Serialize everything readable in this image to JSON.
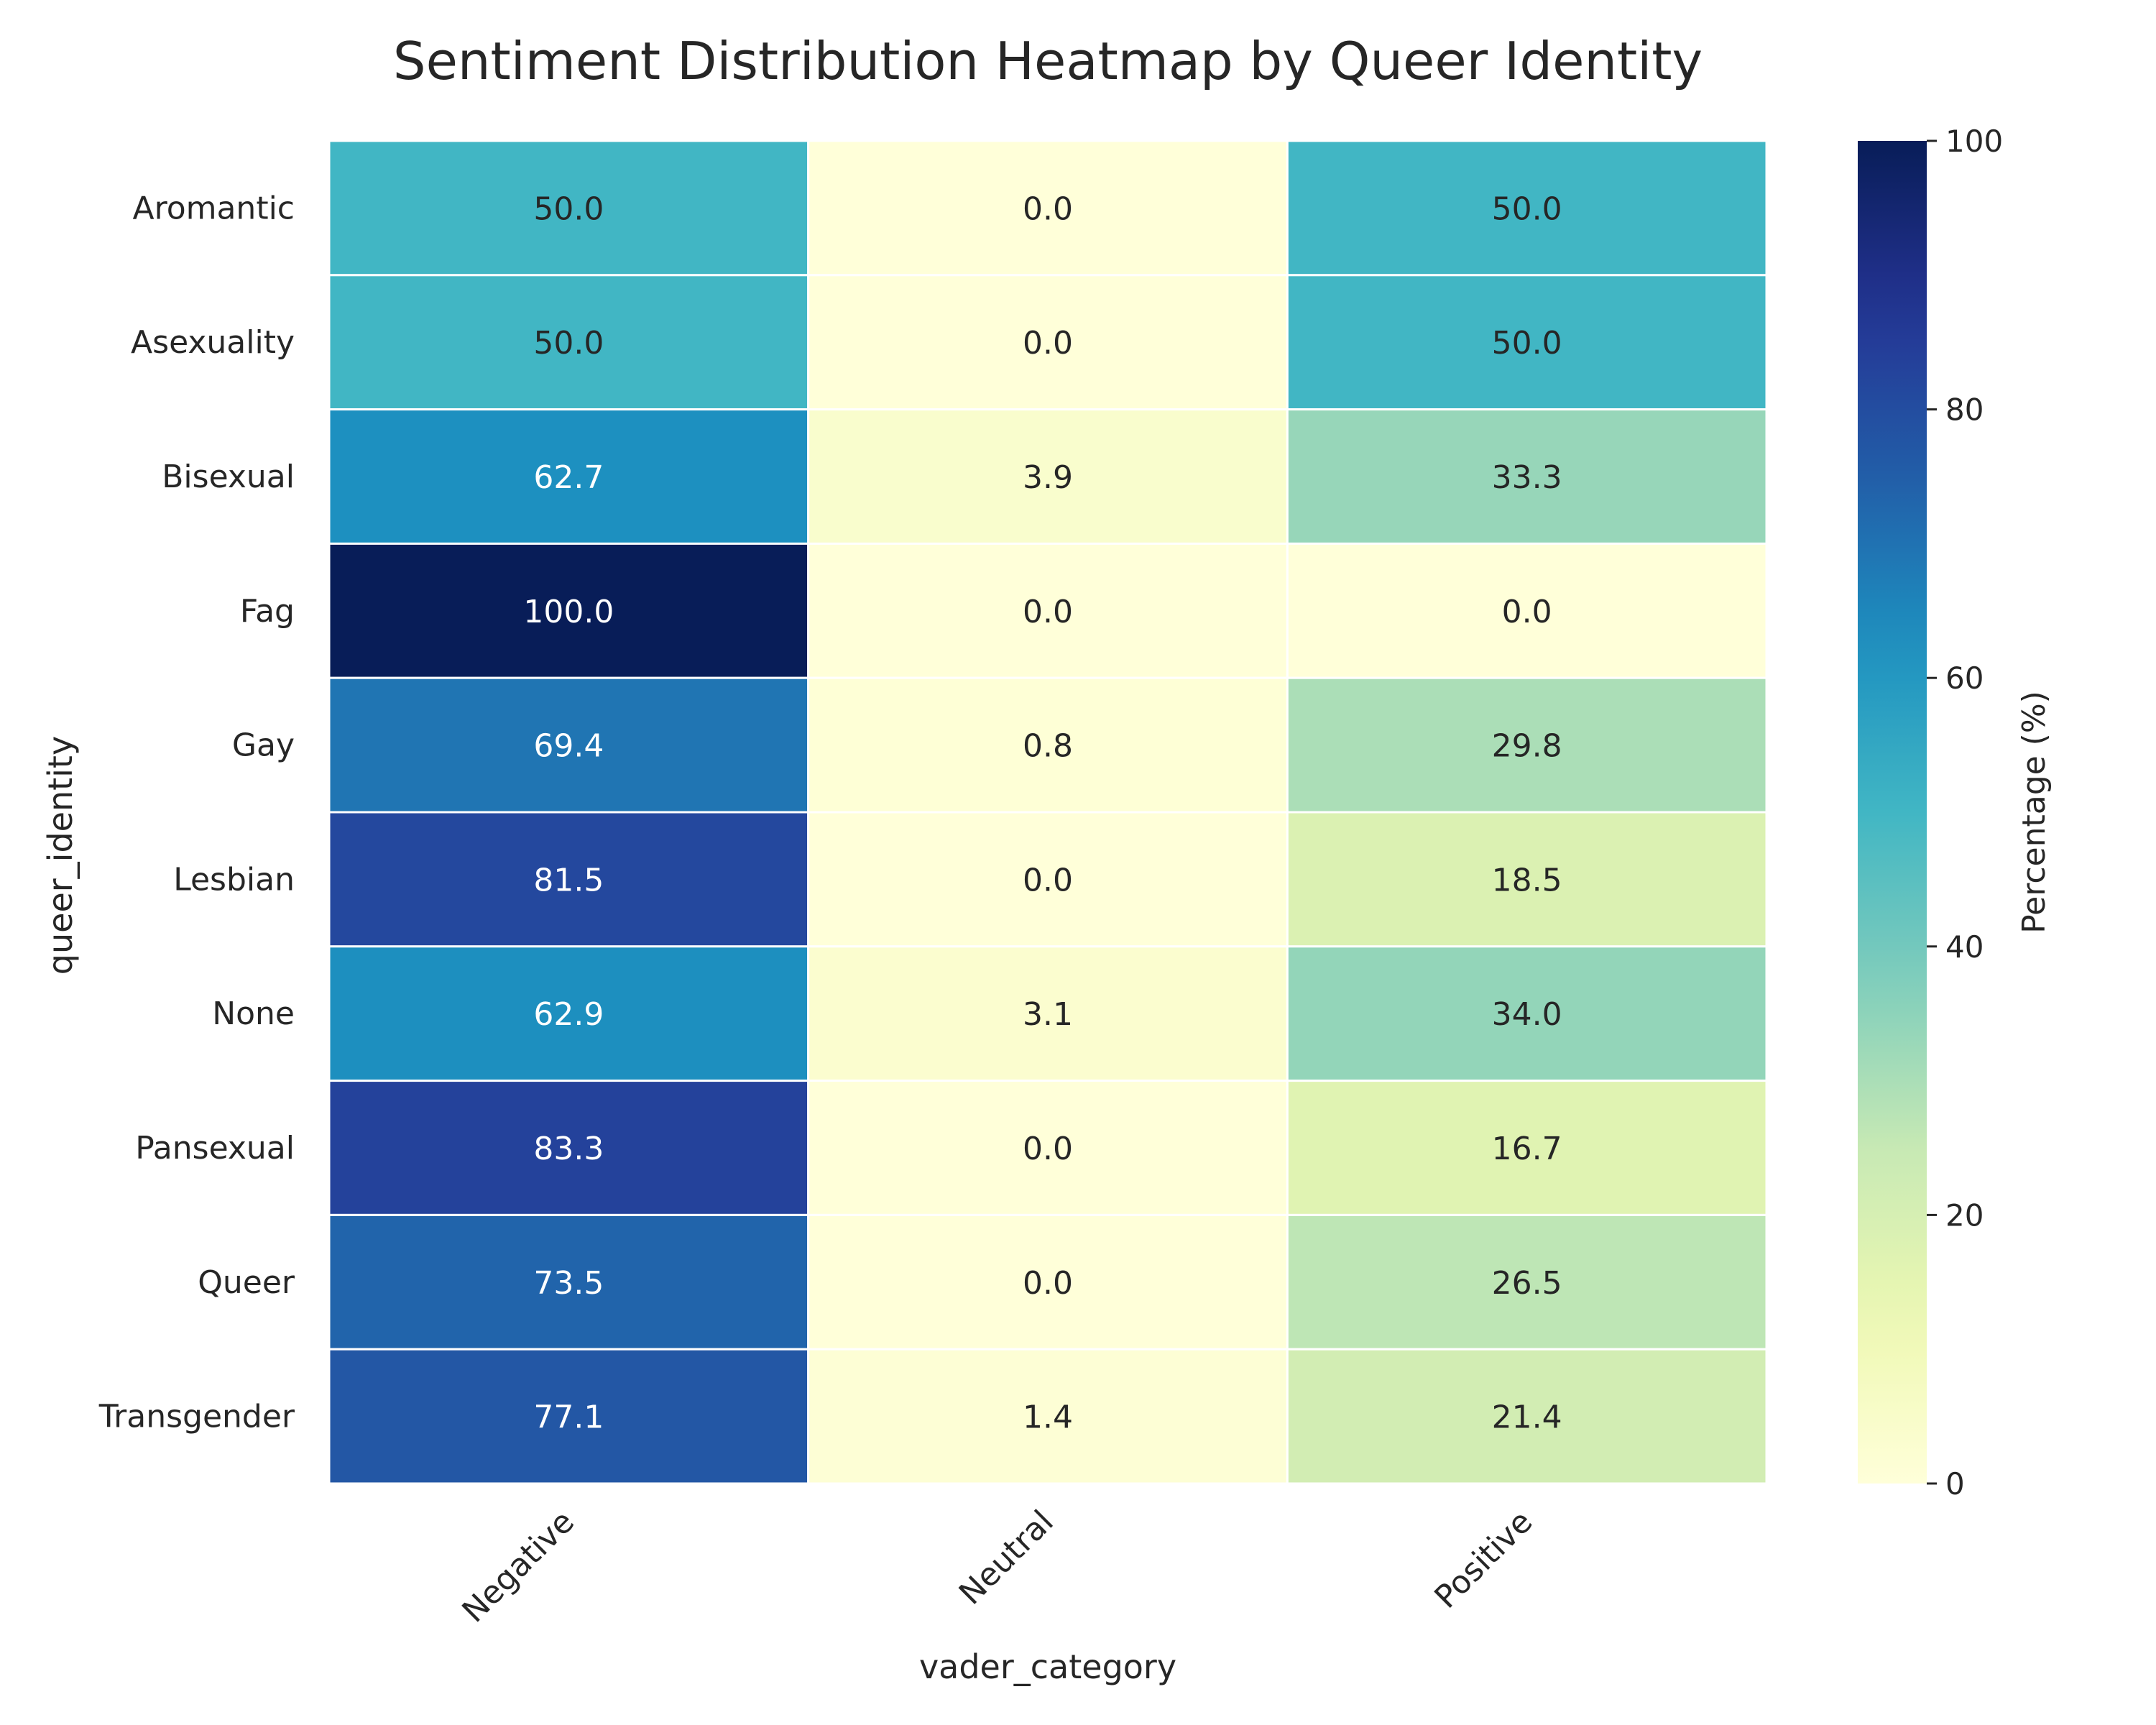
{
  "chart_data": {
    "type": "heatmap",
    "title": "Sentiment Distribution Heatmap by Queer Identity",
    "xlabel": "vader_category",
    "ylabel": "queer_identity",
    "colorbar_label": "Percentage (%)",
    "colormap": "YlGnBu",
    "value_range": [
      0,
      100
    ],
    "colorbar_ticks": [
      0,
      20,
      40,
      60,
      80,
      100
    ],
    "columns": [
      "Negative",
      "Neutral",
      "Positive"
    ],
    "rows": [
      "Aromantic",
      "Asexuality",
      "Bisexual",
      "Fag",
      "Gay",
      "Lesbian",
      "None",
      "Pansexual",
      "Queer",
      "Transgender"
    ],
    "values": [
      [
        50.0,
        0.0,
        50.0
      ],
      [
        50.0,
        0.0,
        50.0
      ],
      [
        62.7,
        3.9,
        33.3
      ],
      [
        100.0,
        0.0,
        0.0
      ],
      [
        69.4,
        0.8,
        29.8
      ],
      [
        81.5,
        0.0,
        18.5
      ],
      [
        62.9,
        3.1,
        34.0
      ],
      [
        83.3,
        0.0,
        16.7
      ],
      [
        73.5,
        0.0,
        26.5
      ],
      [
        77.1,
        1.4,
        21.4
      ]
    ],
    "cell_labels": [
      [
        "50.0",
        "0.0",
        "50.0"
      ],
      [
        "50.0",
        "0.0",
        "50.0"
      ],
      [
        "62.7",
        "3.9",
        "33.3"
      ],
      [
        "100.0",
        "0.0",
        "0.0"
      ],
      [
        "69.4",
        "0.8",
        "29.8"
      ],
      [
        "81.5",
        "0.0",
        "18.5"
      ],
      [
        "62.9",
        "3.1",
        "34.0"
      ],
      [
        "83.3",
        "0.0",
        "16.7"
      ],
      [
        "73.5",
        "0.0",
        "26.5"
      ],
      [
        "77.1",
        "1.4",
        "21.4"
      ]
    ]
  }
}
